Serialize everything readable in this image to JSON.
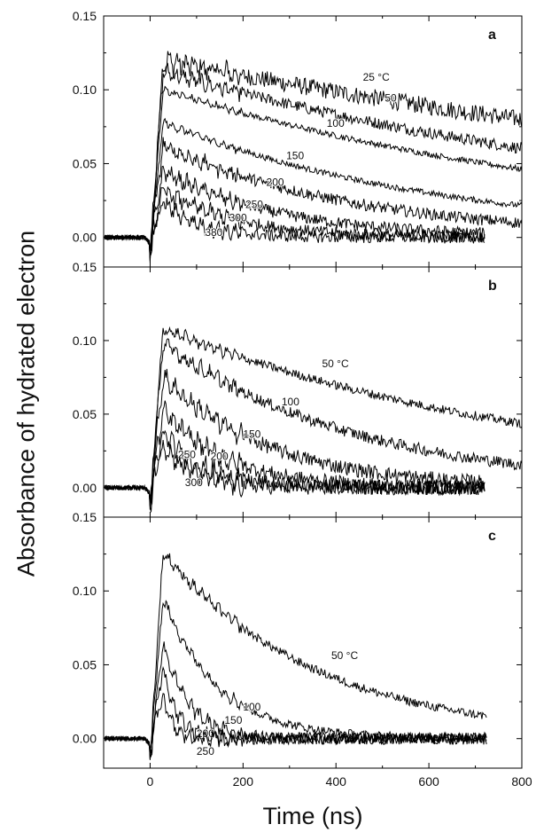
{
  "figure": {
    "ylabel": "Absorbance of hydrated electron",
    "xlabel": "Time (ns)",
    "x_ticks": [
      0,
      200,
      400,
      600,
      800
    ],
    "y_ticks": [
      "0.00",
      "0.05",
      "0.10",
      "0.15"
    ]
  },
  "chart_data": [
    {
      "type": "line",
      "panel_label": "a",
      "xlim": [
        -100,
        800
      ],
      "ylim": [
        -0.02,
        0.15
      ],
      "x_unit": "ns",
      "series": [
        {
          "label": "25 °C",
          "x_end": 800,
          "peak": 0.12,
          "tau": 1900,
          "noise": 0.006,
          "label_at": [
            458,
            0.106
          ]
        },
        {
          "label": "50",
          "x_end": 800,
          "peak": 0.112,
          "tau": 1250,
          "noise": 0.004,
          "label_at": [
            505,
            0.092
          ]
        },
        {
          "label": "100",
          "x_end": 800,
          "peak": 0.1,
          "tau": 1000,
          "noise": 0.002,
          "label_at": [
            380,
            0.075
          ]
        },
        {
          "label": "150",
          "x_end": 800,
          "peak": 0.078,
          "tau": 600,
          "noise": 0.002,
          "label_at": [
            293,
            0.053
          ]
        },
        {
          "label": "200",
          "x_end": 800,
          "peak": 0.062,
          "tau": 420,
          "noise": 0.004,
          "label_at": [
            250,
            0.035
          ]
        },
        {
          "label": "250",
          "x_end": 720,
          "peak": 0.045,
          "tau": 250,
          "noise": 0.004,
          "label_at": [
            205,
            0.02
          ]
        },
        {
          "label": "300",
          "x_end": 720,
          "peak": 0.032,
          "tau": 160,
          "noise": 0.004,
          "label_at": [
            170,
            0.011
          ]
        },
        {
          "label": "380",
          "x_end": 720,
          "peak": 0.024,
          "tau": 80,
          "noise": 0.004,
          "label_at": [
            118,
            0.001
          ]
        }
      ]
    },
    {
      "type": "line",
      "panel_label": "b",
      "xlim": [
        -100,
        800
      ],
      "ylim": [
        -0.02,
        0.15
      ],
      "x_unit": "ns",
      "series": [
        {
          "label": "50 °C",
          "x_end": 800,
          "peak": 0.108,
          "tau": 850,
          "noise": 0.003,
          "label_at": [
            370,
            0.082
          ]
        },
        {
          "label": "100",
          "x_end": 800,
          "peak": 0.098,
          "tau": 420,
          "noise": 0.004,
          "label_at": [
            283,
            0.056
          ]
        },
        {
          "label": "150",
          "x_end": 720,
          "peak": 0.075,
          "tau": 230,
          "noise": 0.005,
          "label_at": [
            200,
            0.034
          ]
        },
        {
          "label": "200",
          "x_end": 720,
          "peak": 0.052,
          "tau": 140,
          "noise": 0.005,
          "label_at": [
            130,
            0.019
          ]
        },
        {
          "label": "250",
          "x_end": 720,
          "peak": 0.037,
          "tau": 90,
          "noise": 0.005,
          "label_at": [
            60,
            0.02
          ]
        },
        {
          "label": "300",
          "x_end": 720,
          "peak": 0.03,
          "tau": 60,
          "noise": 0.005,
          "label_at": [
            75,
            0.001
          ]
        }
      ]
    },
    {
      "type": "line",
      "panel_label": "c",
      "xlim": [
        -100,
        800
      ],
      "ylim": [
        -0.02,
        0.15
      ],
      "x_unit": "ns",
      "series": [
        {
          "label": "50 °C",
          "x_end": 725,
          "peak": 0.126,
          "tau": 330,
          "noise": 0.003,
          "label_at": [
            390,
            0.054
          ]
        },
        {
          "label": "100",
          "x_end": 725,
          "peak": 0.095,
          "tau": 120,
          "noise": 0.003,
          "label_at": [
            200,
            0.019
          ]
        },
        {
          "label": "150",
          "x_end": 725,
          "peak": 0.065,
          "tau": 55,
          "noise": 0.004,
          "label_at": [
            160,
            0.01
          ]
        },
        {
          "label": "200",
          "x_end": 725,
          "peak": 0.048,
          "tau": 30,
          "noise": 0.004,
          "label_at": [
            100,
            0.001
          ]
        },
        {
          "label": "250",
          "x_end": 725,
          "peak": 0.03,
          "tau": 18,
          "noise": 0.004,
          "label_at": [
            100,
            -0.011
          ]
        }
      ]
    }
  ]
}
